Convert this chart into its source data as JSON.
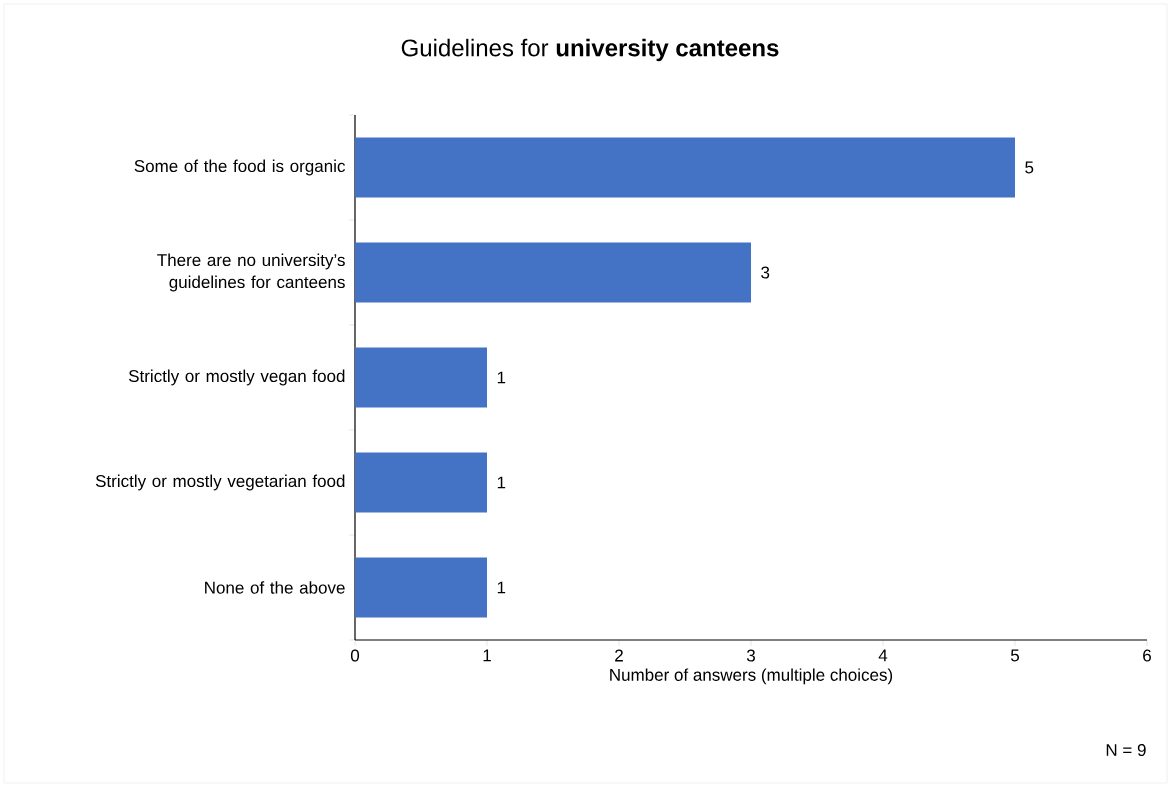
{
  "chart_data": {
    "type": "bar",
    "orientation": "horizontal",
    "title": "Guidelines for **university canteens**",
    "categories": [
      "Some of the food is organic",
      "There are no university’s guidelines for canteens",
      "Strictly or mostly vegan food",
      "Strictly or mostly vegetarian food",
      "None of the above"
    ],
    "values": [
      5,
      3,
      1,
      1,
      1
    ],
    "color": "#4472c4",
    "xlabel": "Number of answers (multiple choices)",
    "xlim": [
      0,
      6
    ],
    "xticks": [
      0,
      1,
      2,
      3,
      4,
      5,
      6
    ],
    "data_labels": true,
    "annotations": [
      "N = 9"
    ]
  }
}
